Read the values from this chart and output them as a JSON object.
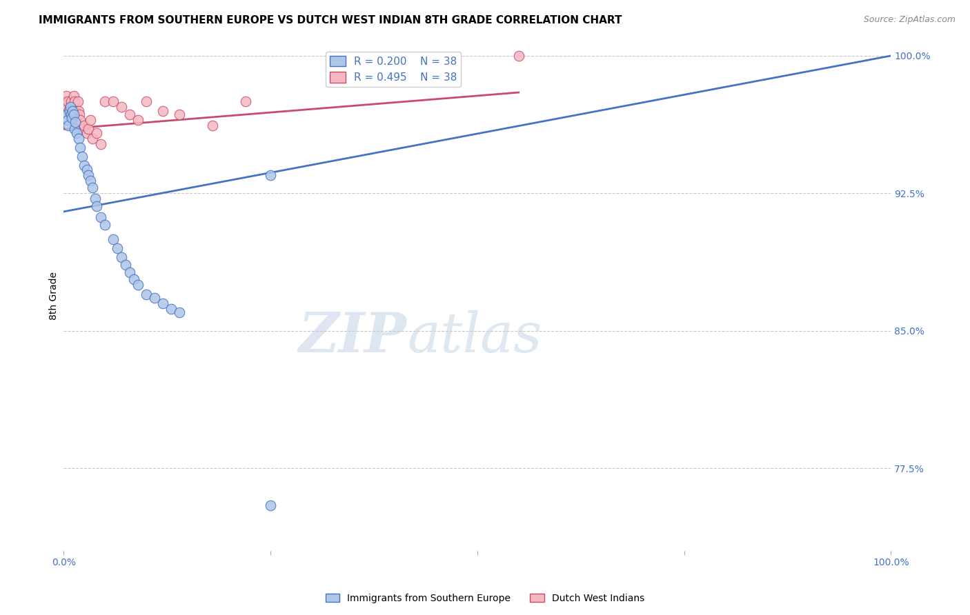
{
  "title": "IMMIGRANTS FROM SOUTHERN EUROPE VS DUTCH WEST INDIAN 8TH GRADE CORRELATION CHART",
  "source": "Source: ZipAtlas.com",
  "ylabel": "8th Grade",
  "ylabel_right_labels": [
    "100.0%",
    "92.5%",
    "85.0%",
    "77.5%"
  ],
  "ylabel_right_values": [
    1.0,
    0.925,
    0.85,
    0.775
  ],
  "legend_blue_label": "Immigrants from Southern Europe",
  "legend_pink_label": "Dutch West Indians",
  "blue_scatter_x": [
    0.004,
    0.005,
    0.006,
    0.007,
    0.008,
    0.009,
    0.01,
    0.011,
    0.012,
    0.013,
    0.014,
    0.016,
    0.018,
    0.02,
    0.022,
    0.025,
    0.028,
    0.03,
    0.032,
    0.035,
    0.038,
    0.04,
    0.045,
    0.05,
    0.06,
    0.065,
    0.07,
    0.075,
    0.08,
    0.085,
    0.09,
    0.1,
    0.11,
    0.12,
    0.13,
    0.14,
    0.25,
    0.25
  ],
  "blue_scatter_y": [
    0.968,
    0.965,
    0.962,
    0.97,
    0.972,
    0.968,
    0.966,
    0.97,
    0.968,
    0.96,
    0.964,
    0.958,
    0.955,
    0.95,
    0.945,
    0.94,
    0.938,
    0.935,
    0.932,
    0.928,
    0.922,
    0.918,
    0.912,
    0.908,
    0.9,
    0.895,
    0.89,
    0.886,
    0.882,
    0.878,
    0.875,
    0.87,
    0.868,
    0.865,
    0.862,
    0.86,
    0.755,
    0.935
  ],
  "pink_scatter_x": [
    0.002,
    0.003,
    0.004,
    0.005,
    0.006,
    0.007,
    0.008,
    0.009,
    0.01,
    0.011,
    0.012,
    0.013,
    0.014,
    0.015,
    0.016,
    0.017,
    0.018,
    0.019,
    0.02,
    0.022,
    0.025,
    0.028,
    0.03,
    0.032,
    0.035,
    0.04,
    0.045,
    0.05,
    0.06,
    0.07,
    0.08,
    0.09,
    0.1,
    0.12,
    0.14,
    0.18,
    0.22,
    0.55
  ],
  "pink_scatter_y": [
    0.975,
    0.978,
    0.972,
    0.975,
    0.97,
    0.968,
    0.972,
    0.975,
    0.97,
    0.972,
    0.978,
    0.975,
    0.97,
    0.965,
    0.968,
    0.975,
    0.97,
    0.968,
    0.965,
    0.96,
    0.962,
    0.958,
    0.96,
    0.965,
    0.955,
    0.958,
    0.952,
    0.975,
    0.975,
    0.972,
    0.968,
    0.965,
    0.975,
    0.97,
    0.968,
    0.962,
    0.975,
    1.0
  ],
  "blue_line_x": [
    0.0,
    1.0
  ],
  "blue_line_y": [
    0.915,
    1.0
  ],
  "pink_line_x": [
    0.0,
    0.55
  ],
  "pink_line_y": [
    0.96,
    0.98
  ],
  "xmin": 0.0,
  "xmax": 1.0,
  "ymin": 0.73,
  "ymax": 1.008,
  "blue_color": "#aec6e8",
  "blue_line_color": "#4472c4",
  "pink_color": "#f5b8c0",
  "pink_line_color": "#c84b6e",
  "grid_color": "#c8c8c8",
  "title_fontsize": 11,
  "axis_label_color": "#4472c4"
}
